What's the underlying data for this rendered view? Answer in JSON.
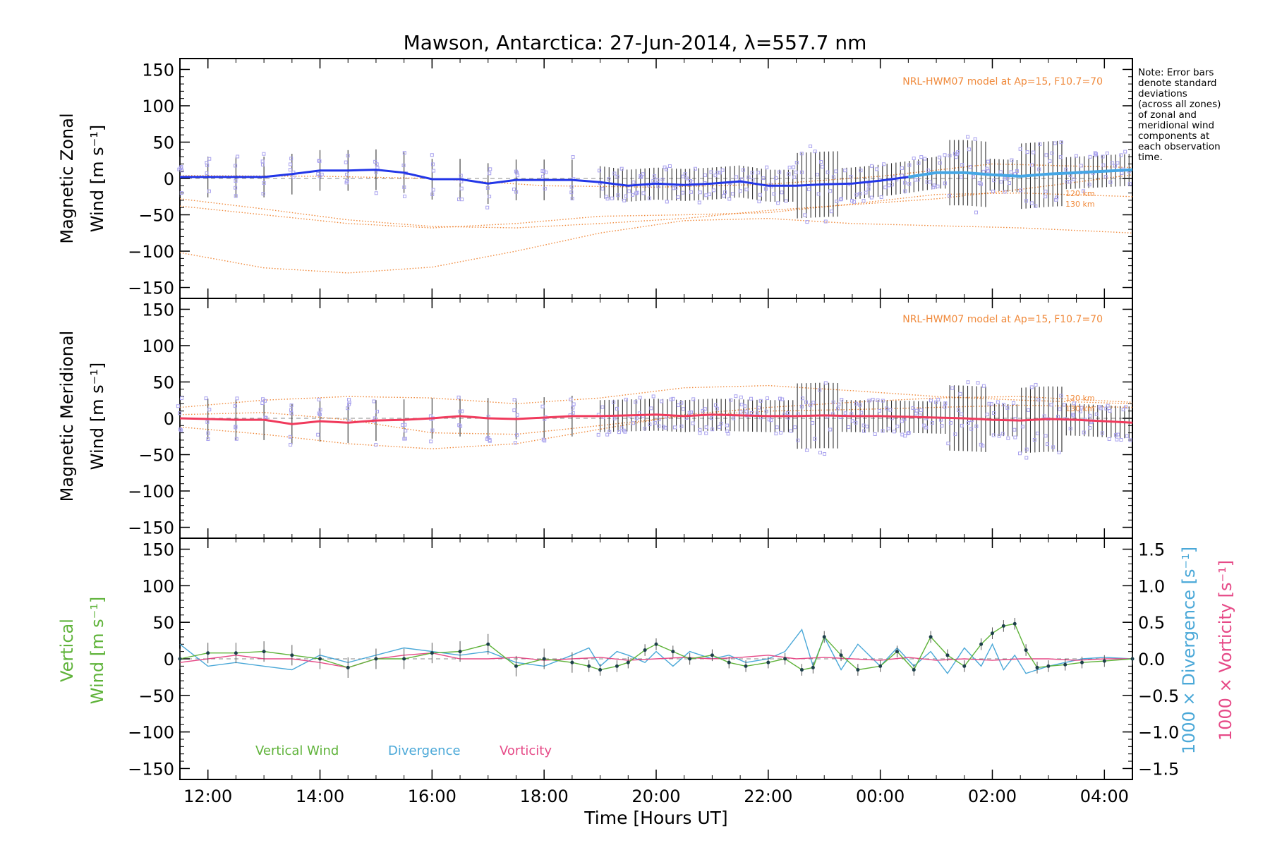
{
  "title": "Mawson, Antarctica: 27-Jun-2014, λ=557.7 nm",
  "note_lines": [
    "Note: Error bars",
    "denote standard",
    "deviations",
    "(across all zones)",
    "of zonal and",
    "meridional wind",
    "components at",
    "each observation",
    "time."
  ],
  "model_label": "NRL-HWM07 model at Ap=15, F10.7=70",
  "km_labels": [
    "120 km",
    "130 km"
  ],
  "xlabel": "Time [Hours UT]",
  "x_ticks": [
    "12:00",
    "14:00",
    "16:00",
    "18:00",
    "20:00",
    "22:00",
    "00:00",
    "02:00",
    "04:00"
  ],
  "y_ticks": [
    "150",
    "100",
    "50",
    "0",
    "−50",
    "−100",
    "−150"
  ],
  "right_ticks": [
    "1.5",
    "1.0",
    "0.5",
    "0.0",
    "−0.5",
    "−1.0",
    "−1.5"
  ],
  "panel_labels": {
    "zonal": [
      "Magnetic Zonal",
      "Wind [m s⁻¹]"
    ],
    "meridional": [
      "Magnetic Meridional",
      "Wind [m s⁻¹]"
    ],
    "vertical": [
      "Vertical",
      "Wind [m s⁻¹]"
    ],
    "divergence": "1000 × Divergence [s⁻¹]",
    "vorticity": "1000 × Vorticity [s⁻¹]"
  },
  "legend": [
    "Vertical Wind",
    "Divergence",
    "Vorticity"
  ],
  "colors": {
    "zonal": "#2236e8",
    "zonal_late": "#45a7e6",
    "meridional": "#f03a5c",
    "model": "#f08a3c",
    "scatter": "#a9a2ee",
    "vertical": "#5fb33a",
    "divergence": "#4aa8d8",
    "vorticity": "#e64a87",
    "errbar": "#333333"
  },
  "chart_data": [
    {
      "type": "line",
      "panel": "zonal",
      "ylabel": "Magnetic Zonal Wind [m s⁻¹]",
      "xlim": [
        11.5,
        28.5
      ],
      "ylim": [
        -165,
        165
      ],
      "series": [
        {
          "x": [
            11.5,
            12.0,
            12.5,
            13.0,
            13.5,
            14.0,
            14.5,
            15.0,
            15.5,
            16.0,
            16.5,
            17.0,
            17.5,
            18.0,
            18.5,
            19.0,
            19.5,
            20.0,
            20.5,
            21.0,
            21.5,
            22.0,
            22.5,
            23.0,
            23.5,
            24.0,
            24.5,
            25.0,
            25.5,
            26.0,
            26.5,
            27.0,
            27.5,
            28.0,
            28.5
          ],
          "y": [
            2,
            2,
            2,
            2,
            6,
            11,
            11,
            12,
            8,
            -1,
            -1,
            -7,
            -2,
            -2,
            -2,
            -5,
            -10,
            -7,
            -9,
            -7,
            -4,
            -10,
            -10,
            -8,
            -7,
            -3,
            2,
            8,
            8,
            5,
            3,
            6,
            8,
            10,
            12
          ]
        }
      ],
      "model_curves": [
        {
          "x": [
            11.5,
            13,
            14.5,
            16,
            17.5,
            19,
            20.5,
            22,
            23.5,
            25,
            26.5,
            28.5
          ],
          "y": [
            -28,
            -42,
            -57,
            -66,
            -68,
            -62,
            -55,
            -44,
            -36,
            -28,
            -15,
            5
          ]
        },
        {
          "x": [
            11.5,
            13,
            14.5,
            16,
            17.5,
            19,
            20.5,
            22,
            23.5,
            25,
            26.5,
            28.5
          ],
          "y": [
            -38,
            -50,
            -62,
            -68,
            -62,
            -52,
            -50,
            -47,
            -35,
            -22,
            -20,
            -25
          ]
        },
        {
          "x": [
            11.5,
            13,
            14.5,
            16,
            17.5,
            19,
            20.5,
            22,
            23.5,
            25,
            26.5,
            28.5
          ],
          "y": [
            -102,
            -123,
            -130,
            -122,
            -100,
            -75,
            -58,
            -55,
            -62,
            -65,
            -68,
            -75
          ]
        },
        {
          "x": [
            11.5,
            14,
            16,
            18,
            20,
            22,
            24,
            26,
            28.5
          ],
          "y": [
            4,
            3,
            0,
            -10,
            -12,
            -8,
            3,
            20,
            15
          ]
        }
      ]
    },
    {
      "type": "line",
      "panel": "meridional",
      "ylabel": "Magnetic Meridional Wind [m s⁻¹]",
      "xlim": [
        11.5,
        28.5
      ],
      "ylim": [
        -165,
        165
      ],
      "series": [
        {
          "x": [
            11.5,
            12.0,
            12.5,
            13.0,
            13.5,
            14.0,
            14.5,
            15.0,
            15.5,
            16.0,
            16.5,
            17.0,
            17.5,
            18.0,
            18.5,
            19.0,
            19.5,
            20.0,
            20.5,
            21.0,
            21.5,
            22.0,
            22.5,
            23.0,
            23.5,
            24.0,
            24.5,
            25.0,
            25.5,
            26.0,
            26.5,
            27.0,
            27.5,
            28.0,
            28.5
          ],
          "y": [
            0,
            -1,
            -2,
            -2,
            -8,
            -4,
            -6,
            -3,
            -2,
            0,
            3,
            0,
            -1,
            1,
            3,
            3,
            4,
            5,
            3,
            5,
            4,
            3,
            3,
            4,
            3,
            3,
            2,
            1,
            0,
            -2,
            -3,
            -1,
            -2,
            -4,
            -6
          ]
        }
      ],
      "model_curves": [
        {
          "x": [
            11.5,
            13,
            14.5,
            16,
            17.5,
            19,
            20.5,
            22,
            23.5,
            25,
            26.5,
            28.5
          ],
          "y": [
            -12,
            -22,
            -35,
            -42,
            -35,
            -15,
            5,
            15,
            22,
            28,
            30,
            22
          ]
        },
        {
          "x": [
            11.5,
            13,
            14.5,
            16,
            17.5,
            19,
            20.5,
            22,
            23.5,
            25,
            26.5,
            28.5
          ],
          "y": [
            15,
            25,
            30,
            28,
            20,
            28,
            42,
            45,
            38,
            30,
            25,
            20
          ]
        },
        {
          "x": [
            11.5,
            13,
            14.5,
            16,
            17.5,
            19,
            20.5,
            22,
            23.5,
            25,
            26.5,
            28.5
          ],
          "y": [
            5,
            8,
            -2,
            -20,
            -22,
            -10,
            3,
            10,
            12,
            15,
            18,
            15
          ]
        }
      ]
    },
    {
      "type": "line",
      "panel": "vertical",
      "ylabel": "Vertical Wind [m s⁻¹]",
      "y2label": "1000 × Divergence / Vorticity [s⁻¹]",
      "xlim": [
        11.5,
        28.5
      ],
      "ylim": [
        -165,
        165
      ],
      "y2lim": [
        -1.65,
        1.65
      ],
      "series": [
        {
          "name": "Vertical Wind",
          "x": [
            11.5,
            12.0,
            12.5,
            13.0,
            13.5,
            14.0,
            14.5,
            15.0,
            15.5,
            16.0,
            16.5,
            17.0,
            17.5,
            18.0,
            18.5,
            18.8,
            19.0,
            19.3,
            19.5,
            19.8,
            20.0,
            20.3,
            20.6,
            21.0,
            21.3,
            21.6,
            22.0,
            22.3,
            22.6,
            22.8,
            23.0,
            23.3,
            23.6,
            24.0,
            24.3,
            24.6,
            24.9,
            25.2,
            25.5,
            25.8,
            26.0,
            26.2,
            26.4,
            26.6,
            26.8,
            27.0,
            27.3,
            27.6,
            28.0,
            28.5
          ],
          "y": [
            0,
            8,
            8,
            10,
            5,
            0,
            -12,
            0,
            0,
            8,
            10,
            20,
            -10,
            0,
            -5,
            -10,
            -15,
            -10,
            -5,
            12,
            20,
            10,
            0,
            5,
            -5,
            -10,
            -5,
            0,
            -15,
            -12,
            30,
            5,
            -15,
            -10,
            10,
            -15,
            30,
            5,
            -10,
            20,
            35,
            45,
            48,
            12,
            -12,
            -10,
            -8,
            -5,
            -3,
            0
          ]
        },
        {
          "name": "Divergence",
          "x": [
            11.5,
            12.0,
            12.5,
            13.0,
            13.5,
            14.0,
            14.5,
            15.0,
            15.5,
            16.0,
            16.5,
            17.0,
            17.5,
            18.0,
            18.5,
            18.8,
            19.0,
            19.3,
            19.5,
            19.8,
            20.0,
            20.3,
            20.6,
            21.0,
            21.3,
            21.6,
            22.0,
            22.3,
            22.6,
            22.8,
            23.0,
            23.3,
            23.6,
            24.0,
            24.3,
            24.6,
            24.9,
            25.2,
            25.5,
            25.8,
            26.0,
            26.2,
            26.4,
            26.6,
            26.8,
            27.0,
            27.3,
            27.6,
            28.0,
            28.5
          ],
          "y": [
            0.2,
            -0.1,
            -0.05,
            -0.1,
            -0.15,
            0.05,
            -0.05,
            0.05,
            0.15,
            0.1,
            0.05,
            0.1,
            -0.05,
            -0.1,
            0.05,
            0.15,
            -0.1,
            0.1,
            0.05,
            -0.05,
            0.1,
            -0.1,
            0.1,
            0.0,
            0.05,
            -0.05,
            0.0,
            0.1,
            0.4,
            -0.1,
            0.3,
            -0.15,
            0.2,
            -0.1,
            0.15,
            -0.1,
            0.1,
            -0.2,
            0.15,
            -0.1,
            0.2,
            -0.15,
            0.05,
            -0.2,
            -0.15,
            -0.1,
            -0.05,
            0.0,
            0.02,
            0.0
          ]
        },
        {
          "name": "Vorticity",
          "x": [
            11.5,
            12.0,
            12.5,
            13.0,
            13.5,
            14.0,
            14.5,
            15.0,
            15.5,
            16.0,
            16.5,
            17.0,
            17.5,
            18.0,
            18.5,
            19.0,
            19.5,
            20.0,
            20.5,
            21.0,
            21.5,
            22.0,
            22.5,
            23.0,
            23.5,
            24.0,
            24.5,
            25.0,
            25.5,
            26.0,
            26.5,
            27.0,
            27.5,
            28.0,
            28.5
          ],
          "y": [
            -0.05,
            0.0,
            0.05,
            0.0,
            0.0,
            -0.05,
            -0.12,
            0.0,
            0.05,
            0.08,
            0.0,
            0.0,
            0.02,
            -0.02,
            0.0,
            0.02,
            -0.02,
            0.0,
            0.02,
            0.0,
            0.02,
            0.05,
            0.0,
            0.02,
            0.0,
            -0.02,
            0.02,
            -0.02,
            0.0,
            -0.02,
            0.0,
            0.0,
            -0.02,
            0.0,
            0.0
          ]
        }
      ]
    }
  ]
}
